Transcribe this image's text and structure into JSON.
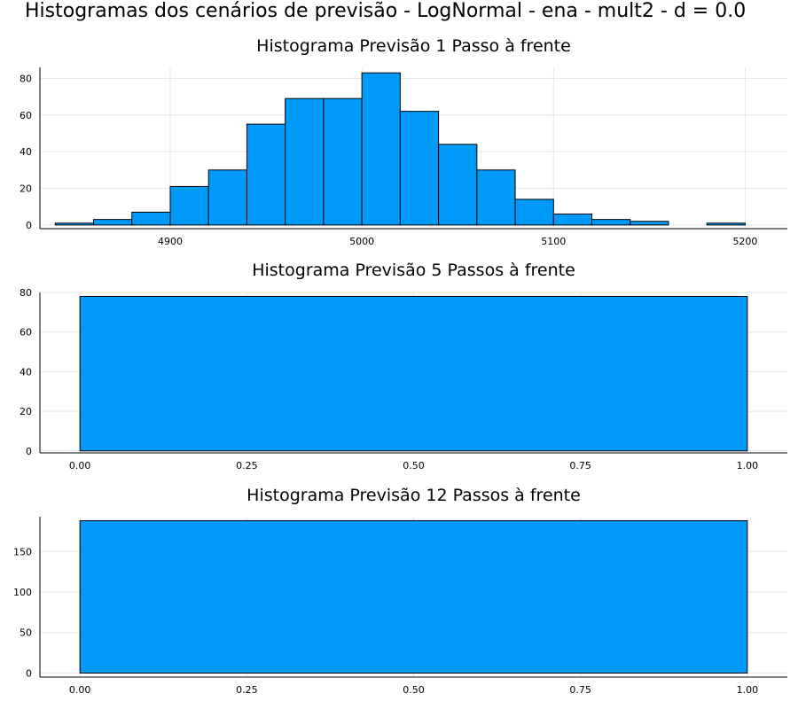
{
  "suptitle": "Histogramas dos cenários de previsão - LogNormal - ena - mult2 - d = 0.0",
  "bar_color": "#009af9",
  "chart_data": [
    {
      "type": "bar",
      "title": "Histograma Previsão 1 Passo à frente",
      "bin_edges": [
        4840,
        4860,
        4880,
        4900,
        4920,
        4940,
        4960,
        4980,
        5000,
        5020,
        5040,
        5060,
        5080,
        5100,
        5120,
        5140,
        5160,
        5180,
        5200
      ],
      "counts": [
        1,
        3,
        7,
        21,
        30,
        55,
        69,
        69,
        83,
        62,
        44,
        30,
        14,
        6,
        3,
        2,
        0,
        1
      ],
      "xlim": [
        4832,
        5222
      ],
      "ylim": [
        -2,
        86
      ],
      "xticks": [
        4900,
        5000,
        5100,
        5200
      ],
      "xticklabels": [
        "4900",
        "5000",
        "5100",
        "5200"
      ],
      "yticks": [
        0,
        20,
        40,
        60,
        80
      ],
      "yticklabels": [
        "0",
        "20",
        "40",
        "60",
        "80"
      ],
      "grid": true
    },
    {
      "type": "bar",
      "title": "Histograma Previsão 5 Passos à frente",
      "bin_edges": [
        0,
        1
      ],
      "counts": [
        78
      ],
      "xlim": [
        -0.06,
        1.06
      ],
      "ylim": [
        -1,
        80
      ],
      "xticks": [
        0,
        0.25,
        0.5,
        0.75,
        1
      ],
      "xticklabels": [
        "0.00",
        "0.25",
        "0.50",
        "0.75",
        "1.00"
      ],
      "yticks": [
        0,
        20,
        40,
        60,
        80
      ],
      "yticklabels": [
        "0",
        "20",
        "40",
        "60",
        "80"
      ],
      "grid": true
    },
    {
      "type": "bar",
      "title": "Histograma Previsão 12 Passos à frente",
      "bin_edges": [
        0,
        1
      ],
      "counts": [
        188
      ],
      "xlim": [
        -0.06,
        1.06
      ],
      "ylim": [
        -5,
        193
      ],
      "xticks": [
        0,
        0.25,
        0.5,
        0.75,
        1
      ],
      "xticklabels": [
        "0.00",
        "0.25",
        "0.50",
        "0.75",
        "1.00"
      ],
      "yticks": [
        0,
        50,
        100,
        150
      ],
      "yticklabels": [
        "0",
        "50",
        "100",
        "150"
      ],
      "grid": true
    }
  ]
}
